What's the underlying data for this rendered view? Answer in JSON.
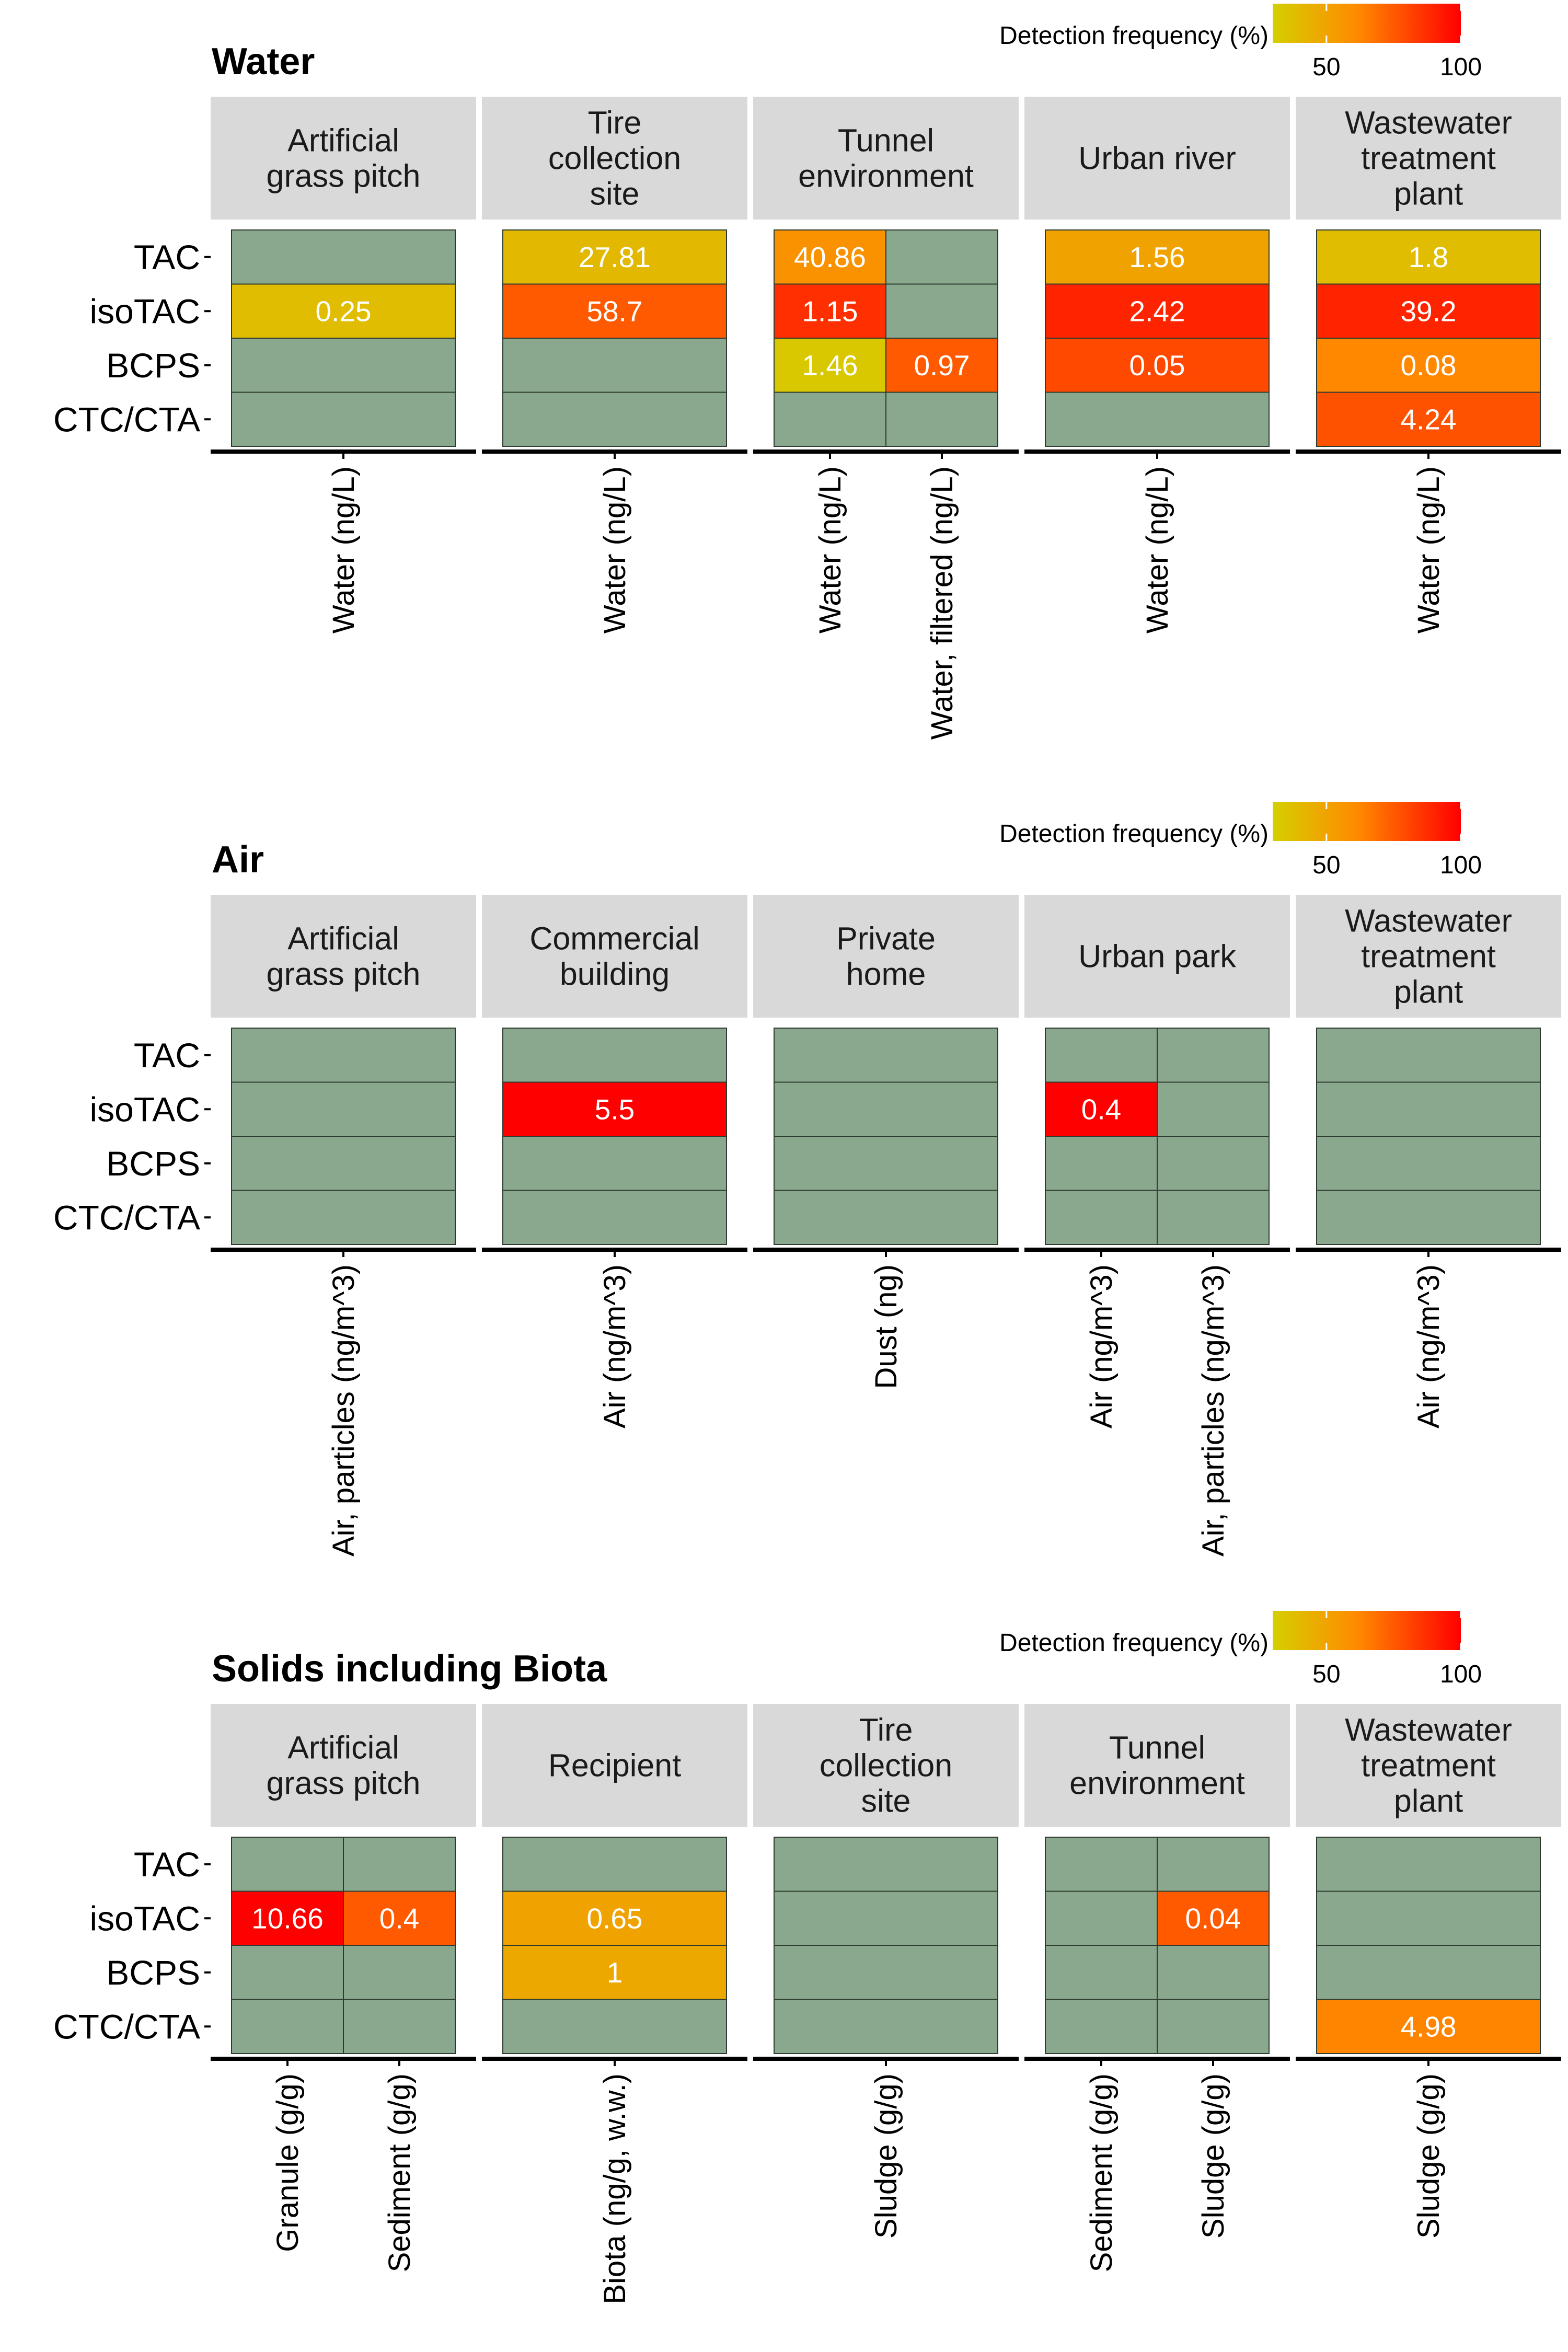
{
  "colors": {
    "empty": "#8aa88e",
    "strip": "#d9d9d9",
    "cell_border": "#2f3b30",
    "gradient": [
      "#d5cf00",
      "#ff8a00",
      "#ff0000"
    ]
  },
  "chart_data": [
    {
      "type": "heatmap",
      "title": "Water",
      "rows": [
        "TAC",
        "isoTAC",
        "BCPS",
        "CTC/CTA"
      ],
      "legend": {
        "title": "Detection frequency (%)",
        "ticks": [
          50,
          100
        ],
        "range": [
          30,
          100
        ],
        "placement": "top-right"
      },
      "facets": [
        {
          "name": "Artificial grass pitch",
          "columns": [
            "Water (ng/L)"
          ],
          "cells": [
            {
              "row": "isoTAC",
              "col": "Water (ng/L)",
              "value": "0.25",
              "freq": 38
            }
          ]
        },
        {
          "name": "Tire collection site",
          "columns": [
            "Water (ng/L)"
          ],
          "cells": [
            {
              "row": "TAC",
              "col": "Water (ng/L)",
              "value": "27.81",
              "freq": 40
            },
            {
              "row": "isoTAC",
              "col": "Water (ng/L)",
              "value": "58.7",
              "freq": 75
            }
          ]
        },
        {
          "name": "Tunnel environment",
          "columns": [
            "Water (ng/L)",
            "Water, filtered (ng/L)"
          ],
          "cells": [
            {
              "row": "TAC",
              "col": "Water (ng/L)",
              "value": "40.86",
              "freq": 58
            },
            {
              "row": "isoTAC",
              "col": "Water (ng/L)",
              "value": "1.15",
              "freq": 87
            },
            {
              "row": "BCPS",
              "col": "Water (ng/L)",
              "value": "1.46",
              "freq": 33
            },
            {
              "row": "BCPS",
              "col": "Water, filtered (ng/L)",
              "value": "0.97",
              "freq": 75
            }
          ]
        },
        {
          "name": "Urban river",
          "columns": [
            "Water (ng/L)"
          ],
          "cells": [
            {
              "row": "TAC",
              "col": "Water (ng/L)",
              "value": "1.56",
              "freq": 50
            },
            {
              "row": "isoTAC",
              "col": "Water (ng/L)",
              "value": "2.42",
              "freq": 90
            },
            {
              "row": "BCPS",
              "col": "Water (ng/L)",
              "value": "0.05",
              "freq": 80
            }
          ]
        },
        {
          "name": "Wastewater treatment plant",
          "columns": [
            "Water (ng/L)"
          ],
          "cells": [
            {
              "row": "TAC",
              "col": "Water (ng/L)",
              "value": "1.8",
              "freq": 38
            },
            {
              "row": "isoTAC",
              "col": "Water (ng/L)",
              "value": "39.2",
              "freq": 90
            },
            {
              "row": "BCPS",
              "col": "Water (ng/L)",
              "value": "0.08",
              "freq": 62
            },
            {
              "row": "CTC/CTA",
              "col": "Water (ng/L)",
              "value": "4.24",
              "freq": 77
            }
          ]
        }
      ]
    },
    {
      "type": "heatmap",
      "title": "Air",
      "rows": [
        "TAC",
        "isoTAC",
        "BCPS",
        "CTC/CTA"
      ],
      "legend": {
        "title": "Detection frequency (%)",
        "ticks": [
          50,
          100
        ],
        "range": [
          30,
          100
        ],
        "placement": "top-right"
      },
      "facets": [
        {
          "name": "Artificial grass pitch",
          "columns": [
            "Air, particles (ng/m^3)"
          ],
          "cells": []
        },
        {
          "name": "Commercial building",
          "columns": [
            "Air (ng/m^3)"
          ],
          "cells": [
            {
              "row": "isoTAC",
              "col": "Air (ng/m^3)",
              "value": "5.5",
              "freq": 100
            }
          ]
        },
        {
          "name": "Private home",
          "columns": [
            "Dust (ng)"
          ],
          "cells": []
        },
        {
          "name": "Urban park",
          "columns": [
            "Air (ng/m^3)",
            "Air, particles (ng/m^3)"
          ],
          "cells": [
            {
              "row": "isoTAC",
              "col": "Air (ng/m^3)",
              "value": "0.4",
              "freq": 100
            }
          ]
        },
        {
          "name": "Wastewater treatment plant",
          "columns": [
            "Air (ng/m^3)"
          ],
          "cells": []
        }
      ]
    },
    {
      "type": "heatmap",
      "title": "Solids including Biota",
      "rows": [
        "TAC",
        "isoTAC",
        "BCPS",
        "CTC/CTA"
      ],
      "legend": {
        "title": "Detection frequency (%)",
        "ticks": [
          50,
          100
        ],
        "range": [
          30,
          100
        ],
        "placement": "top-right"
      },
      "facets": [
        {
          "name": "Artificial grass pitch",
          "columns": [
            "Granule (g/g)",
            "Sediment (g/g)"
          ],
          "cells": [
            {
              "row": "isoTAC",
              "col": "Granule (g/g)",
              "value": "10.66",
              "freq": 100
            },
            {
              "row": "isoTAC",
              "col": "Sediment (g/g)",
              "value": "0.4",
              "freq": 75
            }
          ]
        },
        {
          "name": "Recipient",
          "columns": [
            "Biota (ng/g, w.w.)"
          ],
          "cells": [
            {
              "row": "isoTAC",
              "col": "Biota (ng/g, w.w.)",
              "value": "0.65",
              "freq": 50
            },
            {
              "row": "BCPS",
              "col": "Biota (ng/g, w.w.)",
              "value": "1",
              "freq": 48
            }
          ]
        },
        {
          "name": "Tire collection site",
          "columns": [
            "Sludge (g/g)"
          ],
          "cells": []
        },
        {
          "name": "Tunnel environment",
          "columns": [
            "Sediment (g/g)",
            "Sludge (g/g)"
          ],
          "cells": [
            {
              "row": "isoTAC",
              "col": "Sludge (g/g)",
              "value": "0.04",
              "freq": 75
            }
          ]
        },
        {
          "name": "Wastewater treatment plant",
          "columns": [
            "Sludge (g/g)"
          ],
          "cells": [
            {
              "row": "CTC/CTA",
              "col": "Sludge (g/g)",
              "value": "4.98",
              "freq": 63
            }
          ]
        }
      ]
    }
  ]
}
